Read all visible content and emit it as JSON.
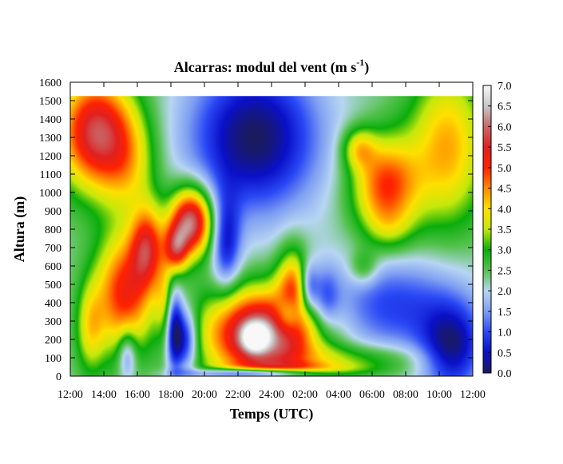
{
  "chart_data": {
    "type": "heatmap",
    "title": "Alcarras: modul del vent (m s",
    "title_exponent": "-1",
    "title_suffix": ")",
    "xlabel": "Temps (UTC)",
    "ylabel": "Altura (m)",
    "x_ticks": [
      "12:00",
      "14:00",
      "16:00",
      "18:00",
      "20:00",
      "22:00",
      "24:00",
      "02:00",
      "04:00",
      "06:00",
      "08:00",
      "10:00",
      "12:00"
    ],
    "y_ticks": [
      "0",
      "100",
      "200",
      "300",
      "400",
      "500",
      "600",
      "700",
      "800",
      "900",
      "1000",
      "1100",
      "1200",
      "1300",
      "1400",
      "1500",
      "1600"
    ],
    "xlim_hours": [
      0,
      24
    ],
    "ylim": [
      0,
      1600
    ],
    "colorbar": {
      "range": [
        0,
        7
      ],
      "ticks": [
        "0.0",
        "0.5",
        "1.0",
        "1.5",
        "2.0",
        "2.5",
        "3.0",
        "3.5",
        "4.0",
        "4.5",
        "5.0",
        "5.5",
        "6.0",
        "6.5",
        "7.0"
      ]
    },
    "palette": [
      {
        "v": 0.0,
        "c": "#1a1a5e"
      },
      {
        "v": 0.5,
        "c": "#0a10c8"
      },
      {
        "v": 1.0,
        "c": "#2a48f5"
      },
      {
        "v": 1.5,
        "c": "#7e9ef2"
      },
      {
        "v": 2.0,
        "c": "#b8d6f2"
      },
      {
        "v": 2.5,
        "c": "#55c24e"
      },
      {
        "v": 3.0,
        "c": "#0aae0a"
      },
      {
        "v": 3.5,
        "c": "#c4e80c"
      },
      {
        "v": 4.0,
        "c": "#ffe000"
      },
      {
        "v": 4.5,
        "c": "#ff8a00"
      },
      {
        "v": 5.0,
        "c": "#ff2200"
      },
      {
        "v": 5.5,
        "c": "#e02020"
      },
      {
        "v": 6.0,
        "c": "#c86868"
      },
      {
        "v": 6.5,
        "c": "#c8c8c8"
      },
      {
        "v": 7.0,
        "c": "#f8f8f8"
      }
    ],
    "grid": false,
    "z_model": {
      "base": 2.3,
      "features": [
        {
          "t": 1.5,
          "h": 1330,
          "st": 1.6,
          "sh": 220,
          "a": 3.4
        },
        {
          "t": 3.5,
          "h": 1150,
          "st": 1.2,
          "sh": 200,
          "a": 1.2
        },
        {
          "t": 3.2,
          "h": 450,
          "st": 1.2,
          "sh": 230,
          "a": 2.8
        },
        {
          "t": 4.6,
          "h": 700,
          "st": 0.7,
          "sh": 160,
          "a": 2.6
        },
        {
          "t": 1.2,
          "h": 260,
          "st": 0.6,
          "sh": 170,
          "a": 1.4
        },
        {
          "t": 7.2,
          "h": 840,
          "st": 0.9,
          "sh": 130,
          "a": 4.0
        },
        {
          "t": 6.3,
          "h": 690,
          "st": 0.5,
          "sh": 90,
          "a": 2.3
        },
        {
          "t": 6.2,
          "h": 250,
          "st": 0.35,
          "sh": 160,
          "a": -2.1
        },
        {
          "t": 6.9,
          "h": 200,
          "st": 0.5,
          "sh": 120,
          "a": -1.9
        },
        {
          "t": 3.4,
          "h": 120,
          "st": 0.4,
          "sh": 100,
          "a": -1.4
        },
        {
          "t": 5.6,
          "h": 420,
          "st": 0.4,
          "sh": 140,
          "a": 1.0
        },
        {
          "t": 11.5,
          "h": 230,
          "st": 2.4,
          "sh": 170,
          "a": 4.2
        },
        {
          "t": 11.0,
          "h": 210,
          "st": 0.55,
          "sh": 55,
          "a": 2.0
        },
        {
          "t": 13.3,
          "h": 480,
          "st": 0.7,
          "sh": 160,
          "a": 2.1
        },
        {
          "t": 11.4,
          "h": 15,
          "st": 2.5,
          "sh": 20,
          "a": -3.6
        },
        {
          "t": 11.0,
          "h": 1300,
          "st": 2.8,
          "sh": 300,
          "a": -2.3
        },
        {
          "t": 9.3,
          "h": 720,
          "st": 0.6,
          "sh": 180,
          "a": -1.6
        },
        {
          "t": 13.0,
          "h": 330,
          "st": 0.6,
          "sh": 80,
          "a": -1.8
        },
        {
          "t": 14.2,
          "h": 480,
          "st": 0.4,
          "sh": 100,
          "a": -1.6
        },
        {
          "t": 15.2,
          "h": 420,
          "st": 0.6,
          "sh": 120,
          "a": -1.2
        },
        {
          "t": 18.8,
          "h": 1040,
          "st": 1.4,
          "sh": 180,
          "a": 2.6
        },
        {
          "t": 17.2,
          "h": 1240,
          "st": 0.7,
          "sh": 80,
          "a": 1.4
        },
        {
          "t": 19.0,
          "h": 800,
          "st": 1.0,
          "sh": 100,
          "a": 0.6
        },
        {
          "t": 17.5,
          "h": 590,
          "st": 0.6,
          "sh": 70,
          "a": 0.9
        },
        {
          "t": 19.3,
          "h": 380,
          "st": 3.2,
          "sh": 190,
          "a": -1.4
        },
        {
          "t": 22.8,
          "h": 140,
          "st": 1.3,
          "sh": 170,
          "a": -1.9
        },
        {
          "t": 17.0,
          "h": 90,
          "st": 3.0,
          "sh": 60,
          "a": 1.0
        },
        {
          "t": 22.5,
          "h": 1250,
          "st": 1.6,
          "sh": 300,
          "a": 2.0
        },
        {
          "t": 13.2,
          "h": 30,
          "st": 2.8,
          "sh": 30,
          "a": 1.5
        }
      ]
    }
  }
}
